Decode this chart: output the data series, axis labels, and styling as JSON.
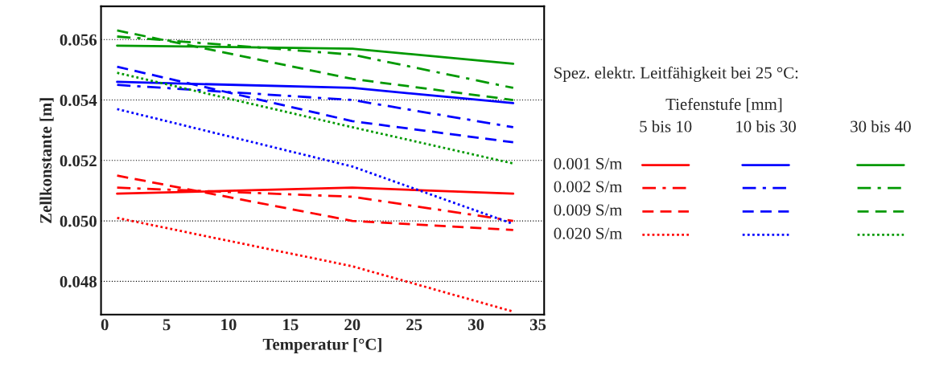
{
  "chart_data": {
    "type": "line",
    "xlabel": "Temperatur [°C]",
    "ylabel": "Zellkonstante [m]",
    "legend_title": "Spez. elektr. Leitfähigkeit bei 25 °C:",
    "annotations": [
      "Tiefenstufe [mm]",
      "5 bis 10",
      "10 bis 30",
      "30 bis 40"
    ],
    "x": [
      1,
      20,
      33
    ],
    "xlim": [
      -0.3,
      35.5
    ],
    "xticks": [
      0,
      5,
      10,
      15,
      20,
      25,
      30,
      35
    ],
    "ylim": [
      0.0469,
      0.0571
    ],
    "yticks": [
      {
        "value": 0.048,
        "label": "0.048"
      },
      {
        "value": 0.05,
        "label": "0.050"
      },
      {
        "value": 0.052,
        "label": "0.052"
      },
      {
        "value": 0.054,
        "label": "0.054"
      },
      {
        "value": 0.056,
        "label": "0.056"
      }
    ],
    "grid": "y",
    "legend": "right",
    "series": [
      {
        "name": "0.001 S/m",
        "color": "#ff0000",
        "line_style": "solid",
        "values": [
          0.0509,
          0.0511,
          0.0509
        ]
      },
      {
        "name": "0.002 S/m",
        "color": "#ff0000",
        "line_style": "dashdot",
        "values": [
          0.0511,
          0.0508,
          0.05
        ]
      },
      {
        "name": "0.009 S/m",
        "color": "#ff0000",
        "line_style": "dashed",
        "values": [
          0.0515,
          0.05,
          0.0497
        ]
      },
      {
        "name": "0.020 S/m",
        "color": "#ff0000",
        "line_style": "dotted",
        "values": [
          0.0501,
          0.0485,
          0.047
        ]
      },
      {
        "color": "#0000ff",
        "line_style": "solid",
        "values": [
          0.0546,
          0.0544,
          0.0539
        ]
      },
      {
        "color": "#0000ff",
        "line_style": "dashdot",
        "values": [
          0.0545,
          0.054,
          0.0531
        ]
      },
      {
        "color": "#0000ff",
        "line_style": "dashed",
        "values": [
          0.0551,
          0.0533,
          0.0526
        ]
      },
      {
        "color": "#0000ff",
        "line_style": "dotted",
        "values": [
          0.0537,
          0.0518,
          0.0499
        ]
      },
      {
        "color": "#009900",
        "line_style": "solid",
        "values": [
          0.0558,
          0.0557,
          0.0552
        ]
      },
      {
        "color": "#009900",
        "line_style": "dashdot",
        "values": [
          0.0561,
          0.0555,
          0.0544
        ]
      },
      {
        "color": "#009900",
        "line_style": "dashed",
        "values": [
          0.0563,
          0.0547,
          0.054
        ]
      },
      {
        "color": "#009900",
        "line_style": "dotted",
        "values": [
          0.0549,
          0.0531,
          0.0519
        ]
      }
    ]
  }
}
